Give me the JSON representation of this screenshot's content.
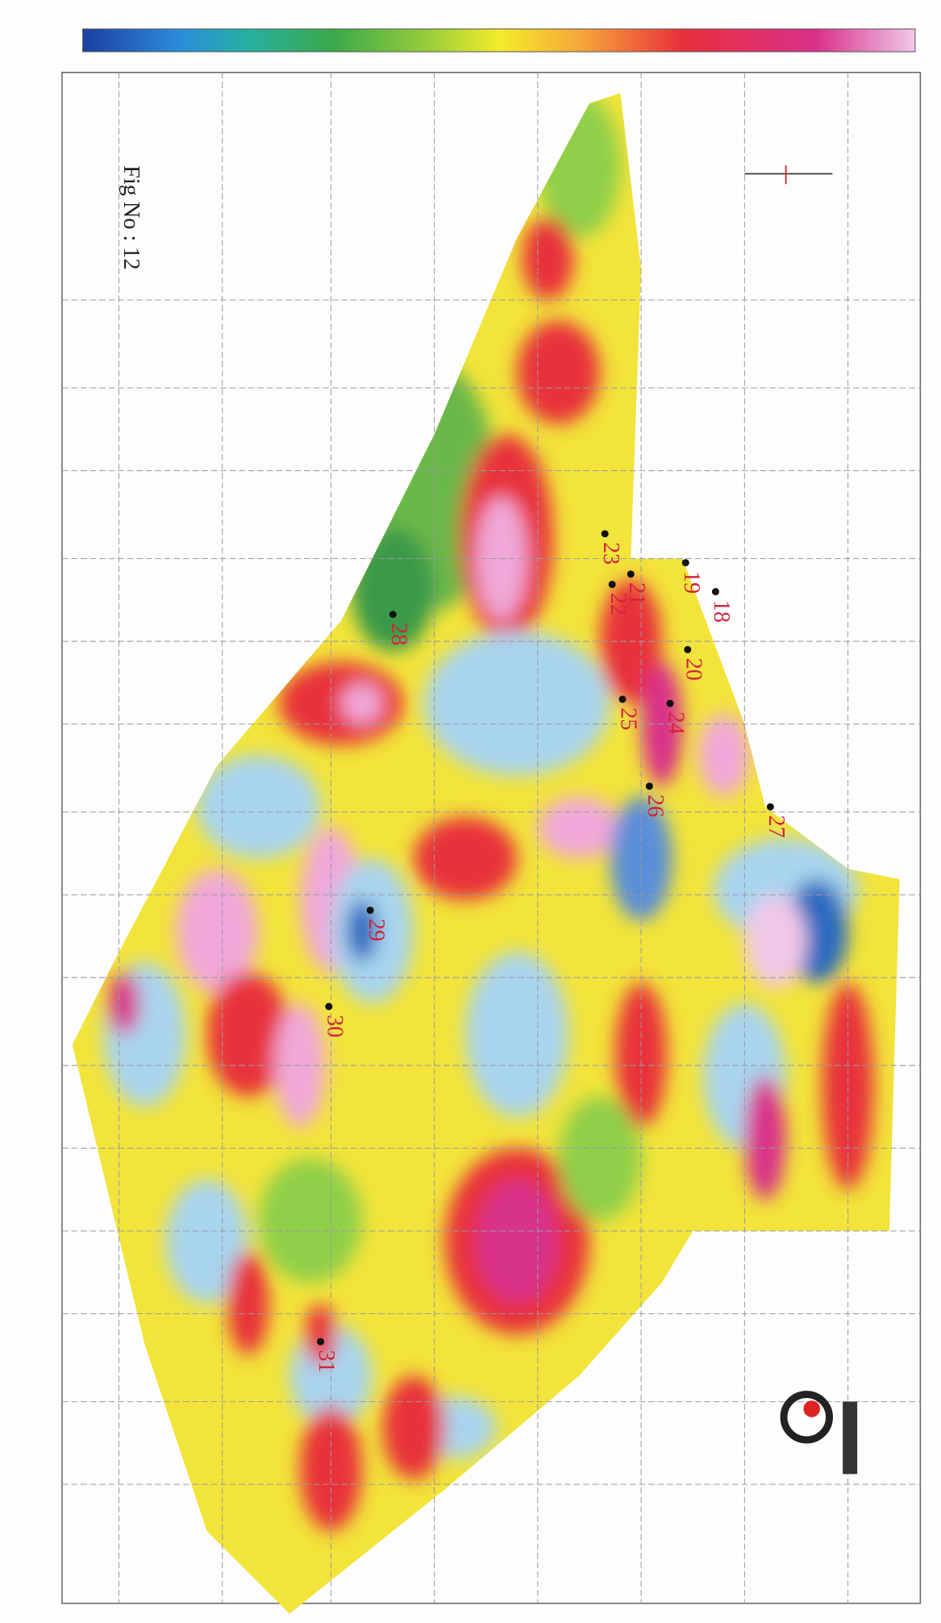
{
  "figure_label": "Fig No : 12",
  "stations": [
    {
      "label": "18"
    },
    {
      "label": "19"
    },
    {
      "label": "20"
    },
    {
      "label": "21"
    },
    {
      "label": "22"
    },
    {
      "label": "23"
    },
    {
      "label": "24"
    },
    {
      "label": "25"
    },
    {
      "label": "26"
    },
    {
      "label": "27"
    },
    {
      "label": "28"
    },
    {
      "label": "29"
    },
    {
      "label": "30"
    },
    {
      "label": "31"
    }
  ]
}
